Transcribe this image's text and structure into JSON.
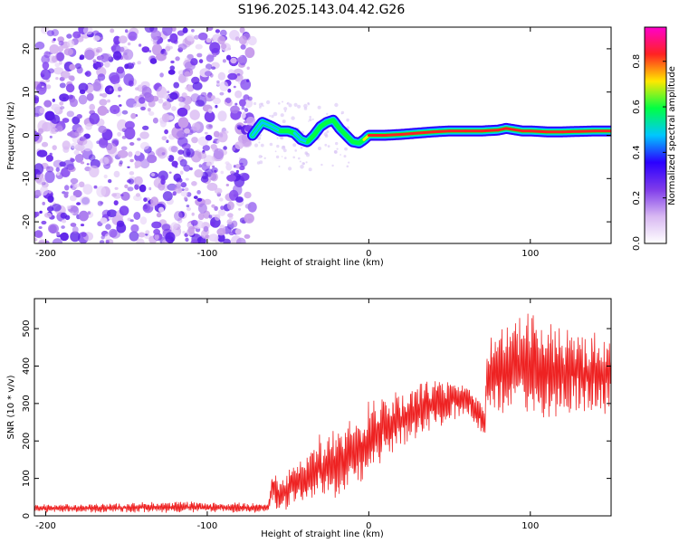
{
  "title": "S196.2025.143.04.42.G26",
  "chart_data": [
    {
      "type": "heatmap",
      "xlabel": "Height of straight line (km)",
      "ylabel": "Frequency (Hz)",
      "xlim": [
        -207,
        150
      ],
      "ylim": [
        -25,
        25
      ],
      "xticks": [
        -200,
        -100,
        0,
        100
      ],
      "yticks": [
        -20,
        -10,
        0,
        10,
        20
      ],
      "colorbar": {
        "label": "Normalized spectral amplitude",
        "range": [
          0,
          0.95
        ],
        "ticks": [
          0.0,
          0.2,
          0.4,
          0.6,
          0.8
        ],
        "colors": [
          "#ffffff",
          "#d8b8f2",
          "#7f3bea",
          "#2b00ff",
          "#00c7ff",
          "#00ff44",
          "#ffe800",
          "#ff2222",
          "#ff00cc"
        ]
      },
      "noise_region": {
        "x_from": -207,
        "x_to": -72,
        "freq_from": -25,
        "freq_to": 25
      },
      "signal_ridge": {
        "x": [
          -72,
          -66,
          -60,
          -55,
          -50,
          -46,
          -42,
          -38,
          -34,
          -30,
          -26,
          -22,
          -18,
          -14,
          -10,
          -6,
          -3,
          0,
          5,
          10,
          20,
          30,
          40,
          50,
          60,
          70,
          80,
          85,
          90,
          95,
          100,
          110,
          120,
          130,
          140,
          150
        ],
        "freq": [
          0,
          3,
          2,
          1,
          1,
          0.5,
          -1,
          -1.5,
          0,
          2,
          3,
          3.5,
          1.5,
          0,
          -1.5,
          -1.8,
          -1,
          0,
          0,
          0,
          0.2,
          0.5,
          0.8,
          1,
          1,
          1,
          1.2,
          1.6,
          1.3,
          1,
          1,
          0.8,
          0.8,
          0.9,
          1,
          1
        ],
        "amplitude": [
          0.45,
          0.5,
          0.5,
          0.55,
          0.6,
          0.55,
          0.5,
          0.55,
          0.6,
          0.6,
          0.6,
          0.55,
          0.55,
          0.6,
          0.65,
          0.6,
          0.7,
          0.8,
          0.85,
          0.85,
          0.85,
          0.85,
          0.85,
          0.85,
          0.85,
          0.85,
          0.85,
          0.9,
          0.85,
          0.85,
          0.85,
          0.85,
          0.85,
          0.85,
          0.85,
          0.85
        ]
      }
    },
    {
      "type": "line",
      "xlabel": "Height of straight line (km)",
      "ylabel": "SNR (10 * v/v)",
      "xlim": [
        -207,
        150
      ],
      "ylim": [
        0,
        580
      ],
      "xticks": [
        -200,
        -100,
        0,
        100
      ],
      "yticks": [
        0,
        100,
        200,
        300,
        400,
        500
      ],
      "line_color": "#ee2222",
      "series": [
        {
          "x": [
            -207,
            -180,
            -150,
            -120,
            -90,
            -62,
            -60,
            -55,
            -50,
            -45,
            -40,
            -35,
            -30,
            -25,
            -20,
            -15,
            -10,
            -5,
            0,
            10,
            20,
            30,
            40,
            50,
            60,
            65,
            70,
            72,
            73,
            80,
            90,
            100,
            110,
            120,
            130,
            140,
            150
          ],
          "mean": [
            20,
            20,
            22,
            24,
            22,
            22,
            80,
            50,
            70,
            90,
            90,
            110,
            130,
            130,
            140,
            160,
            170,
            190,
            210,
            240,
            260,
            280,
            300,
            310,
            320,
            290,
            260,
            240,
            380,
            390,
            400,
            400,
            390,
            380,
            380,
            380,
            380
          ],
          "amplitude": [
            10,
            10,
            12,
            14,
            12,
            12,
            40,
            40,
            50,
            60,
            60,
            70,
            80,
            80,
            80,
            85,
            90,
            90,
            90,
            85,
            75,
            70,
            60,
            55,
            45,
            40,
            35,
            35,
            100,
            110,
            120,
            130,
            120,
            110,
            100,
            100,
            100
          ]
        }
      ]
    }
  ]
}
